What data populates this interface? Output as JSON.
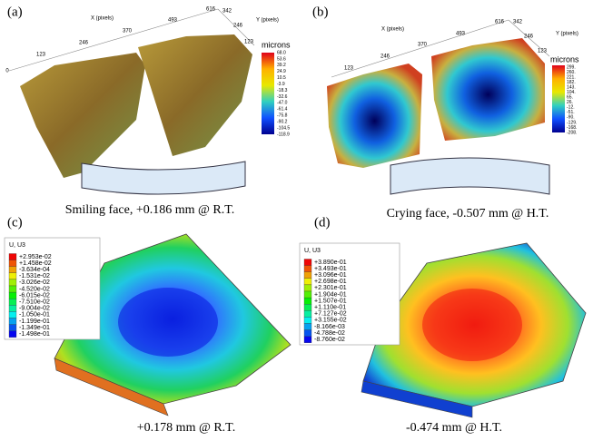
{
  "panels": [
    {
      "label": "(a)",
      "caption": "Smiling face, +0.186 mm @ R.T.",
      "x_axis_title": "X (pixels)",
      "y_axis_title": "Y (pixels)",
      "x_ticks": [
        "0",
        "123",
        "246",
        "370",
        "493",
        "616"
      ],
      "y_ticks": [
        "342",
        "246",
        "123"
      ],
      "colorbar_title": "microns",
      "colorbar_labels": [
        "68.0",
        "53.6",
        "39.2",
        "24.9",
        "10.5",
        "-3.9",
        "-18.3",
        "-32.6",
        "-47.0",
        "-61.4",
        "-75.8",
        "-90.2",
        "-104.5",
        "-118.9"
      ]
    },
    {
      "label": "(b)",
      "caption": "Crying face, -0.507 mm @ H.T.",
      "x_axis_title": "X (pixels)",
      "y_axis_title": "Y (pixels)",
      "x_ticks": [
        "123",
        "246",
        "370",
        "493",
        "616"
      ],
      "y_ticks": [
        "342",
        "246",
        "123"
      ],
      "colorbar_title": "microns",
      "colorbar_labels": [
        "299.",
        "260.",
        "221.",
        "182.",
        "143.",
        "104.",
        "65.",
        "26.",
        "-12.",
        "-51.",
        "-90.",
        "-129.",
        "-168.",
        "-208."
      ]
    },
    {
      "label": "(c)",
      "caption": "+0.178 mm @ R.T.",
      "legend_title": "U, U3",
      "legend_labels": [
        "+2.953e-02",
        "+1.458e-02",
        "-3.634e-04",
        "-1.531e-02",
        "-3.026e-02",
        "-4.520e-02",
        "-6.015e-02",
        "-7.510e-02",
        "-9.004e-02",
        "-1.050e-01",
        "-1.199e-01",
        "-1.349e-01",
        "-1.498e-01"
      ]
    },
    {
      "label": "(d)",
      "caption": "-0.474 mm @ H.T.",
      "legend_title": "U, U3",
      "legend_labels": [
        "+3.890e-01",
        "+3.493e-01",
        "+3.096e-01",
        "+2.698e-01",
        "+2.301e-01",
        "+1.904e-01",
        "+1.507e-01",
        "+1.110e-01",
        "+7.127e-02",
        "+3.155e-02",
        "-8.166e-03",
        "-4.788e-02",
        "-8.760e-02"
      ]
    }
  ]
}
